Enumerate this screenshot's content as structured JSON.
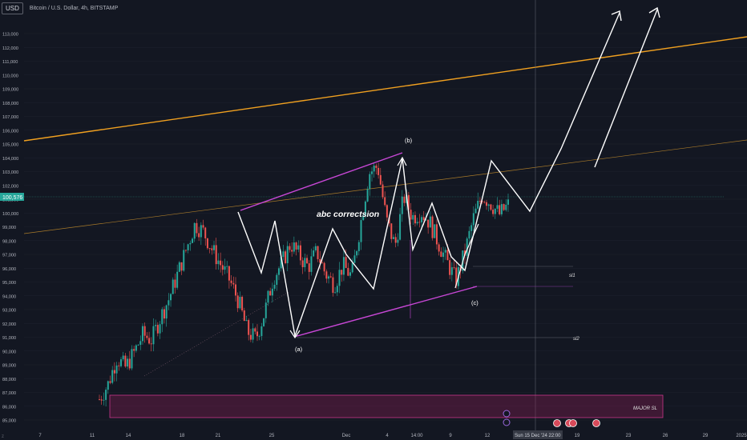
{
  "header": {
    "currency": "USD",
    "symbol_title": "Bitcoin / U.S. Dollar, 4h, BITSTAMP"
  },
  "colors": {
    "background": "#131722",
    "up": "#26a69a",
    "down": "#ef5350",
    "orange": "#f0a020",
    "magenta": "#c847d6",
    "white": "#ffffff",
    "zone": "#8e1d56"
  },
  "chart_data": {
    "type": "candlestick",
    "ylim": [
      84000,
      114000
    ],
    "y_ticks": [
      "85,000",
      "86,000",
      "87,000",
      "88,000",
      "89,000",
      "90,000",
      "91,000",
      "92,000",
      "93,000",
      "94,000",
      "95,000",
      "96,000",
      "97,000",
      "98,000",
      "99,000",
      "100,000",
      "101,000",
      "102,000",
      "103,000",
      "104,000",
      "105,000",
      "106,000",
      "107,000",
      "108,000",
      "109,000",
      "110,000",
      "111,000",
      "112,000",
      "113,000"
    ],
    "x_ticks": [
      "7",
      "11",
      "14",
      "18",
      "21",
      "25",
      "Dec",
      "4",
      "14:00",
      "9",
      "12",
      "Sun 15 Dec '24  22:00",
      "19",
      "23",
      "26",
      "29",
      "2025"
    ],
    "last_price": "100,576",
    "crosshair_label": "Sun 15 Dec '24  22:00",
    "annotations": {
      "title": "abc correctsion",
      "a": "(a)",
      "b": "(b)",
      "c": "(c)",
      "sl1": "sl1",
      "sl2": "sl2",
      "major_sl": "MAJOR SL"
    },
    "price_path_close": [
      86500,
      87600,
      89500,
      88800,
      89900,
      91200,
      90800,
      92400,
      93800,
      95600,
      97400,
      99200,
      98600,
      97300,
      96200,
      95100,
      93600,
      91400,
      90900,
      92800,
      95300,
      96400,
      97800,
      96900,
      96100,
      97200,
      95600,
      94800,
      96200,
      95400,
      99100,
      102900,
      103400,
      99500,
      97600,
      101200,
      99700,
      100100,
      99300,
      97800,
      96400,
      95100,
      97100,
      99600,
      101300,
      100700,
      99900,
      100576
    ]
  }
}
